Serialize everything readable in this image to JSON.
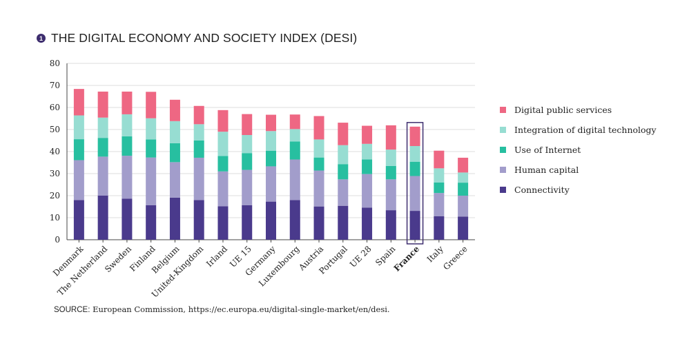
{
  "title": {
    "badge": "1",
    "text": "THE DIGITAL ECONOMY AND SOCIETY INDEX (DESI)"
  },
  "source": {
    "label": "SOURCE:",
    "text": "European Commission, https://ec.europa.eu/digital-single-market/en/desi."
  },
  "chart_data": {
    "type": "bar",
    "stacked": true,
    "title": "",
    "xlabel": "",
    "ylabel": "",
    "ylim": [
      0,
      80
    ],
    "yticks": [
      0,
      10,
      20,
      30,
      40,
      50,
      60,
      70,
      80
    ],
    "grid": true,
    "legend_position": "right",
    "highlighted_category": "France",
    "categories": [
      "Denmark",
      "The Netherland",
      "Sweden",
      "Finland",
      "Belgium",
      "United-Kingdom",
      "Irland",
      "UE 15",
      "Germany",
      "Luxembourg",
      "Austria",
      "Portugal",
      "UE 28",
      "Spain",
      "France",
      "Italy",
      "Greece"
    ],
    "series": [
      {
        "name": "Connectivity",
        "color": "#4a3a8c",
        "values": [
          18,
          20,
          18.6,
          15.7,
          19.1,
          18,
          15.2,
          15.7,
          17.3,
          18,
          15.1,
          15.4,
          14.6,
          13.4,
          13.1,
          10.7,
          10.5
        ]
      },
      {
        "name": "Human capital",
        "color": "#a29dcb",
        "values": [
          18.1,
          17.7,
          19.5,
          21.6,
          16.1,
          19.2,
          15.8,
          16,
          16,
          18.4,
          16.3,
          12,
          15.2,
          14,
          15.8,
          10.5,
          9.5
        ]
      },
      {
        "name": "Use of Internet",
        "color": "#27bfa0",
        "values": [
          9.5,
          8.5,
          8.8,
          8.2,
          8.6,
          7.8,
          7,
          7.6,
          7.1,
          8.2,
          5.9,
          6.9,
          6.6,
          6.1,
          6.5,
          4.8,
          5.9
        ]
      },
      {
        "name": "Integration of digital technology",
        "color": "#97ddd2",
        "values": [
          10.8,
          9.2,
          10,
          9.6,
          10,
          7.4,
          11,
          8.2,
          8.9,
          5.6,
          8.2,
          8.6,
          7.1,
          7.4,
          7.1,
          6.4,
          4.6
        ]
      },
      {
        "name": "Digital public services",
        "color": "#ee6783",
        "values": [
          12,
          11.8,
          10.3,
          12,
          9.7,
          8.3,
          9.8,
          9.5,
          7.4,
          6.6,
          10.6,
          10.2,
          8.2,
          11,
          8.8,
          8,
          6.7
        ]
      }
    ]
  }
}
